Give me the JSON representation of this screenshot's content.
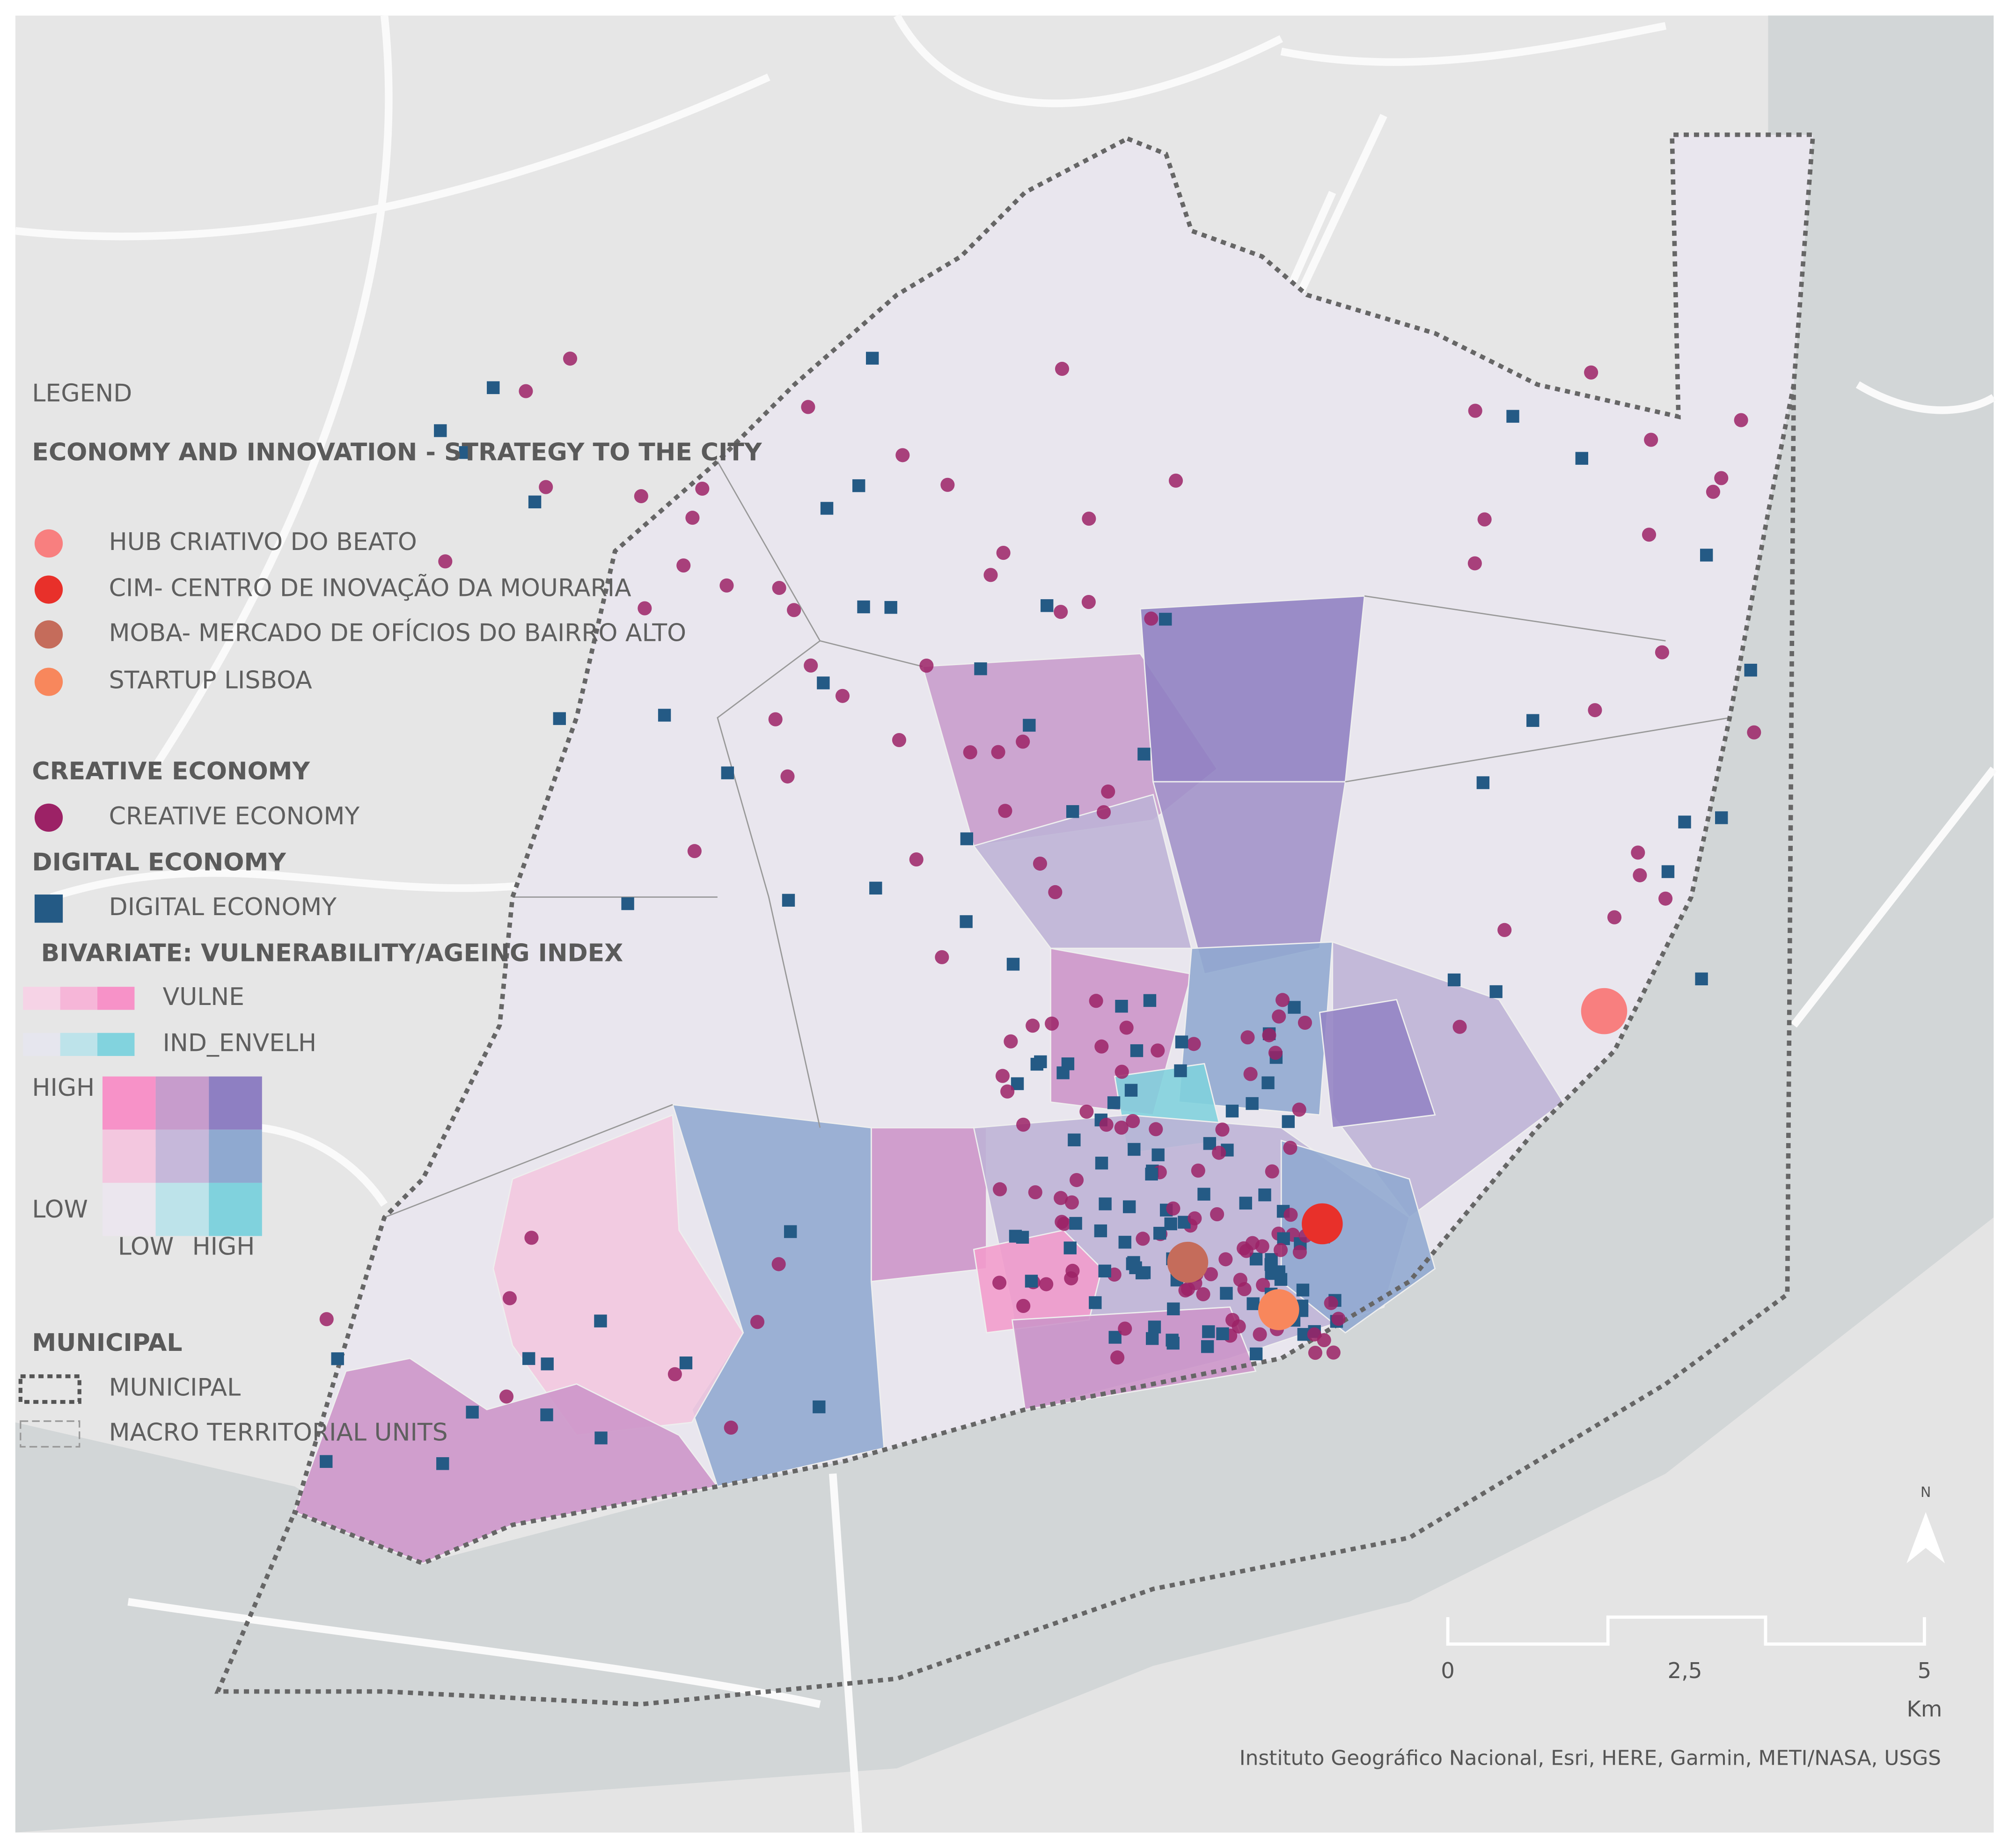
{
  "legend": {
    "title": "LEGEND",
    "sections": [
      {
        "heading": "ECONOMY AND INNOVATION - STRATEGY TO THE CITY",
        "items": [
          "HUB CRIATIVO DO BEATO",
          "CIM- CENTRO DE INOVAÇÃO DA MOURARIA",
          "MOBA- MERCADO DE OFÍCIOS DO BAIRRO ALTO",
          "STARTUP LISBOA"
        ]
      },
      {
        "heading": "CREATIVE ECONOMY",
        "items": [
          "CREATIVE ECONOMY"
        ]
      },
      {
        "heading": "DIGITAL ECONOMY",
        "items": [
          "DIGITAL ECONOMY"
        ]
      },
      {
        "heading": "BIVARIATE: VULNERABILITY/AGEING INDEX",
        "items": [
          "VULNE",
          "IND_ENVELH"
        ],
        "axis_labels": {
          "y_high": "HIGH",
          "y_low": "LOW",
          "x_low": "LOW",
          "x_high": "HIGH"
        }
      },
      {
        "heading": "MUNICIPAL",
        "items": [
          "MUNICIPAL",
          "MACRO TERRITORIAL UNITS"
        ]
      }
    ]
  },
  "north": "N",
  "scale": {
    "labels": [
      "0",
      "2,5",
      "5"
    ],
    "unit": "Km"
  },
  "attribution": "Instituto Geográfico Nacional, Esri, HERE, Garmin, METI/NASA, USGS"
}
